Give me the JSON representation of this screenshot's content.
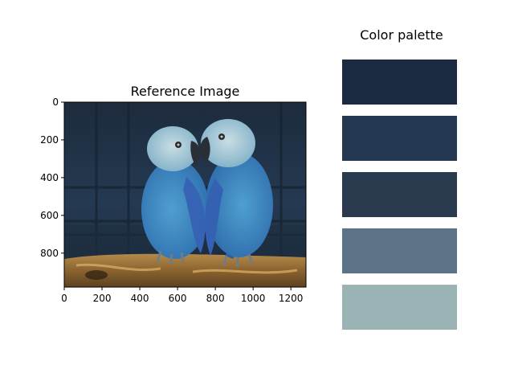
{
  "chart_data": [
    {
      "type": "image",
      "title": "Reference Image",
      "image_subject": "two blue parrots perched on a wooden branch",
      "xlim": [
        0,
        1280
      ],
      "ylim": [
        980,
        0
      ],
      "x_ticks": [
        0,
        200,
        400,
        600,
        800,
        1000,
        1200
      ],
      "y_ticks": [
        0,
        200,
        400,
        600,
        800
      ],
      "x_tick_labels": [
        "0",
        "200",
        "400",
        "600",
        "800",
        "1000",
        "1200"
      ],
      "y_tick_labels": [
        "0",
        "200",
        "400",
        "600",
        "800"
      ]
    },
    {
      "type": "palette",
      "title": "Color palette",
      "colors": [
        "#1b2a40",
        "#243852",
        "#2a3a4e",
        "#5b7287",
        "#9ab3b5"
      ]
    }
  ]
}
